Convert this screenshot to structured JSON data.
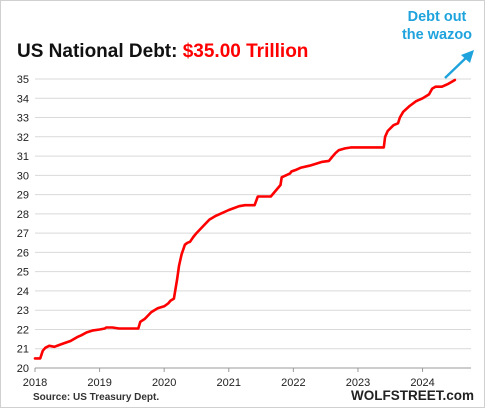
{
  "header": {
    "title_prefix": "US National Debt: ",
    "title_value": "$35.00 Trillion"
  },
  "annotation": {
    "line1": "Debt out",
    "line2": "the wazoo"
  },
  "footer": {
    "source": "Source: US Treasury Dept.",
    "brand": "WOLFSTREET.com"
  },
  "colors": {
    "line": "#ff0000",
    "title_value": "#ff0000",
    "annotation": "#1fa3dd",
    "grid": "#d9d9d9",
    "axis": "#9a9a9a"
  },
  "chart_data": {
    "type": "line",
    "title": "US National Debt: $35.00 Trillion",
    "xlabel": "",
    "ylabel": "",
    "xlim": [
      2018.0,
      2024.75
    ],
    "ylim": [
      20,
      35
    ],
    "grid": true,
    "legend": "none",
    "x_ticks": [
      "2018",
      "2019",
      "2020",
      "2021",
      "2022",
      "2023",
      "2024"
    ],
    "y_ticks": [
      "20",
      "21",
      "22",
      "23",
      "24",
      "25",
      "26",
      "27",
      "28",
      "29",
      "30",
      "31",
      "32",
      "33",
      "34",
      "35"
    ],
    "series": [
      {
        "x": [
          2018.0,
          2018.08,
          2018.12,
          2018.16,
          2018.22,
          2018.3,
          2018.38,
          2018.46,
          2018.55,
          2018.65,
          2018.72,
          2018.8,
          2018.9,
          2019.0,
          2019.08,
          2019.1,
          2019.2,
          2019.3,
          2019.4,
          2019.55,
          2019.6,
          2019.63,
          2019.7,
          2019.8,
          2019.9,
          2020.0,
          2020.06,
          2020.1,
          2020.15,
          2020.2,
          2020.23,
          2020.27,
          2020.32,
          2020.36,
          2020.4,
          2020.45,
          2020.5,
          2020.6,
          2020.7,
          2020.8,
          2020.9,
          2021.0,
          2021.08,
          2021.16,
          2021.25,
          2021.33,
          2021.4,
          2021.45,
          2021.6,
          2021.65,
          2021.8,
          2021.82,
          2021.95,
          2021.97,
          2022.05,
          2022.12,
          2022.25,
          2022.35,
          2022.45,
          2022.55,
          2022.6,
          2022.65,
          2022.7,
          2022.8,
          2022.9,
          2023.0,
          2023.1,
          2023.3,
          2023.4,
          2023.42,
          2023.46,
          2023.55,
          2023.62,
          2023.65,
          2023.7,
          2023.8,
          2023.9,
          2024.0,
          2024.1,
          2024.15,
          2024.2,
          2024.3,
          2024.4,
          2024.5
        ],
        "values": [
          20.5,
          20.5,
          20.9,
          21.05,
          21.15,
          21.1,
          21.2,
          21.3,
          21.4,
          21.6,
          21.7,
          21.85,
          21.95,
          22.0,
          22.05,
          22.1,
          22.1,
          22.05,
          22.05,
          22.05,
          22.05,
          22.4,
          22.55,
          22.9,
          23.1,
          23.2,
          23.35,
          23.5,
          23.6,
          24.6,
          25.3,
          25.9,
          26.4,
          26.5,
          26.55,
          26.8,
          27.0,
          27.35,
          27.7,
          27.9,
          28.05,
          28.2,
          28.3,
          28.4,
          28.45,
          28.45,
          28.45,
          28.9,
          28.9,
          28.9,
          29.5,
          29.9,
          30.1,
          30.2,
          30.3,
          30.4,
          30.5,
          30.6,
          30.7,
          30.75,
          30.95,
          31.15,
          31.3,
          31.4,
          31.45,
          31.45,
          31.45,
          31.45,
          31.45,
          32.0,
          32.3,
          32.6,
          32.7,
          33.0,
          33.3,
          33.6,
          33.85,
          34.0,
          34.2,
          34.5,
          34.6,
          34.6,
          34.75,
          34.95
        ]
      }
    ]
  }
}
